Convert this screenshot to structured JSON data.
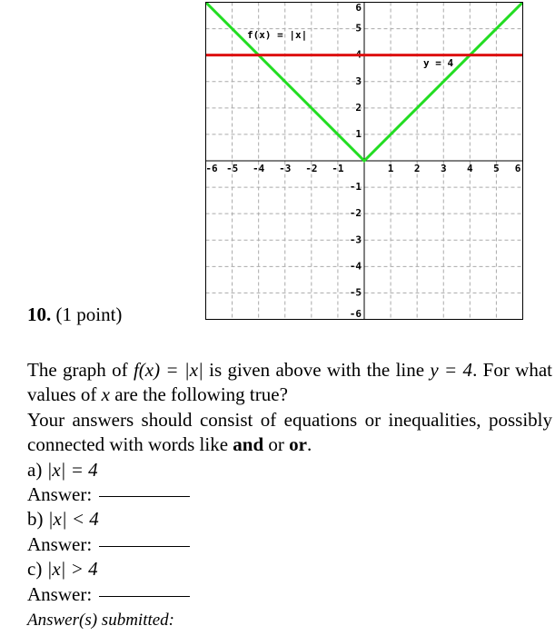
{
  "problem": {
    "number": "10.",
    "points": "(1 point)",
    "intro": [
      "The graph of ",
      "f(x) = |x|",
      " is given above with the line ",
      "y = 4",
      "."
    ],
    "question": [
      "For what values of ",
      "x",
      " are the following true?"
    ],
    "instructions": [
      "Your answers should consist of equations or inequalities, possibly connected with words like ",
      "and",
      " or ",
      "or",
      "."
    ],
    "parts": [
      {
        "label": "a)",
        "expr": "|x| = 4",
        "answer_label": "Answer:"
      },
      {
        "label": "b)",
        "expr": "|x| < 4",
        "answer_label": "Answer:"
      },
      {
        "label": "c)",
        "expr": "|x| > 4",
        "answer_label": "Answer:"
      }
    ],
    "submitted": "Answer(s) submitted:"
  },
  "chart_data": {
    "type": "line",
    "xlim": [
      -6,
      6
    ],
    "ylim": [
      -6,
      6
    ],
    "xticks": [
      -6,
      -5,
      -4,
      -3,
      -2,
      -1,
      1,
      2,
      3,
      4,
      5,
      6
    ],
    "yticks": [
      -6,
      -5,
      -4,
      -3,
      -2,
      -1,
      1,
      2,
      3,
      4,
      5,
      6
    ],
    "grid": true,
    "series": [
      {
        "name": "f(x) = |x|",
        "color": "#22dd22",
        "x": [
          -6,
          0,
          6
        ],
        "values": [
          6,
          0,
          6
        ]
      },
      {
        "name": "y = 4",
        "color": "#dd1111",
        "x": [
          -6,
          6
        ],
        "values": [
          4,
          4
        ]
      }
    ]
  }
}
